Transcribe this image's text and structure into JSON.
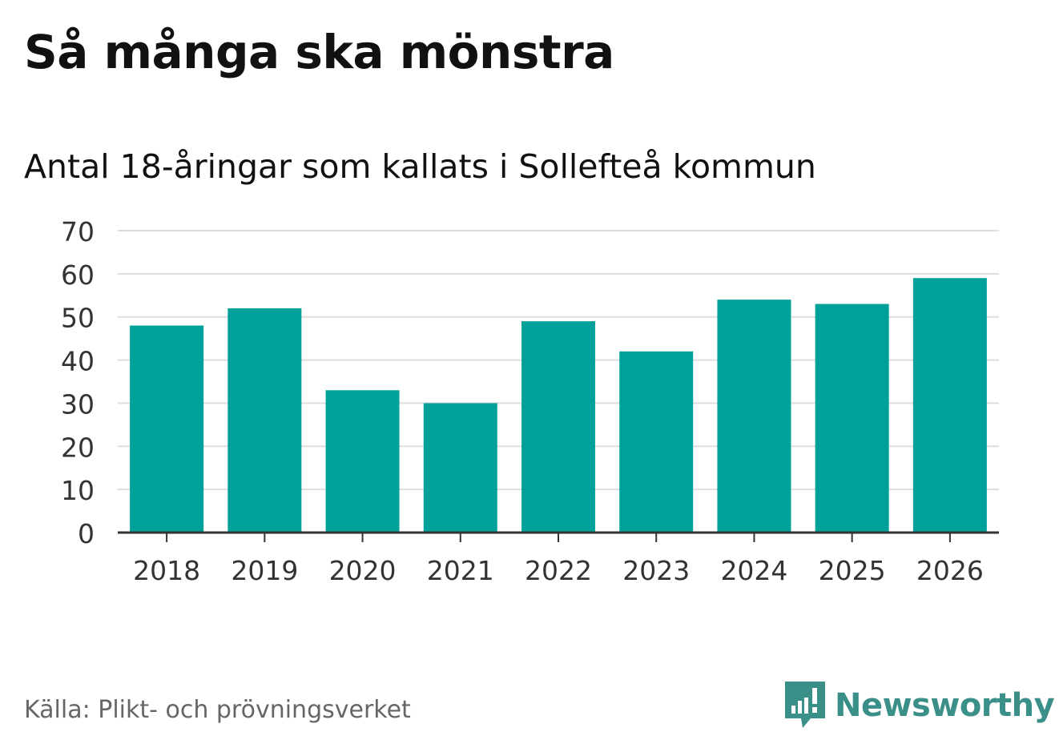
{
  "header": {
    "title": "Så många ska mönstra",
    "subtitle": "Antal 18-åringar som kallats i Sollefteå kommun"
  },
  "footer": {
    "source": "Källa: Plikt- och prövningsverket",
    "brand": "Newsworthy"
  },
  "colors": {
    "bar": "#00a19a",
    "brand": "#3a8f89",
    "gridline": "#dddddd",
    "axis": "#333333"
  },
  "chart_data": {
    "type": "bar",
    "title": "Så många ska mönstra",
    "subtitle": "Antal 18-åringar som kallats i Sollefteå kommun",
    "xlabel": "",
    "ylabel": "",
    "categories": [
      "2018",
      "2019",
      "2020",
      "2021",
      "2022",
      "2023",
      "2024",
      "2025",
      "2026"
    ],
    "values": [
      48,
      52,
      33,
      30,
      49,
      42,
      54,
      53,
      59
    ],
    "ylim": [
      0,
      70
    ],
    "yticks": [
      0,
      10,
      20,
      30,
      40,
      50,
      60,
      70
    ],
    "grid": true,
    "legend": "none"
  }
}
